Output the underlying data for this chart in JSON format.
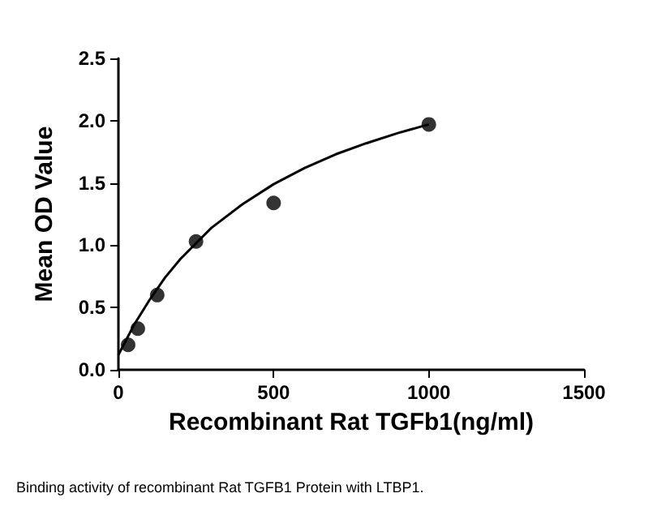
{
  "chart_data": {
    "type": "scatter",
    "xlabel": "Recombinant Rat TGFb1(ng/ml)",
    "ylabel": "Mean OD Value",
    "xlim": [
      0,
      1500
    ],
    "xticks": [
      0,
      500,
      1000,
      1500
    ],
    "ylim": [
      0,
      2.5
    ],
    "yticks": [
      {
        "value": 0,
        "label": "0.0"
      },
      0.5,
      {
        "value": 1,
        "label": "1.0"
      },
      1.5,
      {
        "value": 2,
        "label": "2.0"
      },
      2.5
    ],
    "grid": false,
    "annotations": [
      "Binding activity of recombinant Rat TGFB1 Protein with LTBP1."
    ],
    "series": [
      {
        "color": "#000000",
        "marker": "circle",
        "x": [
          31.25,
          62.5,
          125,
          250,
          500,
          1000
        ],
        "values": [
          0.2,
          0.33,
          0.6,
          1.03,
          1.34,
          1.97
        ]
      },
      {
        "type": "line",
        "color": "#000000",
        "marker": "none",
        "line_style": "solid",
        "x": [
          0,
          50,
          100,
          150,
          200,
          300,
          400,
          500,
          600,
          700,
          800,
          900,
          1000
        ],
        "values": [
          0.12,
          0.36,
          0.56,
          0.74,
          0.89,
          1.14,
          1.33,
          1.49,
          1.62,
          1.73,
          1.82,
          1.9,
          1.97
        ]
      }
    ]
  }
}
